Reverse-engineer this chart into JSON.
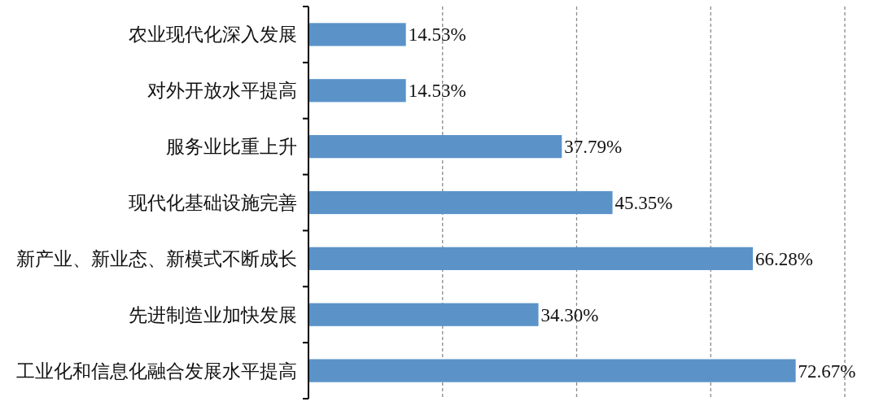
{
  "chart_data": {
    "type": "bar",
    "orientation": "horizontal",
    "categories": [
      "农业现代化深入发展",
      "对外开放水平提高",
      "服务业比重上升",
      "现代化基础设施完善",
      "新产业、新业态、新模式不断成长",
      "先进制造业加快发展",
      "工业化和信息化融合发展水平提高"
    ],
    "values": [
      14.53,
      14.53,
      37.79,
      45.35,
      66.28,
      34.3,
      72.67
    ],
    "value_labels": [
      "14.53%",
      "14.53%",
      "37.79%",
      "45.35%",
      "66.28%",
      "34.30%",
      "72.67%"
    ],
    "color": "#5b93c9",
    "xlim": [
      0,
      80
    ],
    "xticks": [
      {
        "value": 20,
        "label": null
      },
      {
        "value": 40,
        "label": null
      },
      {
        "value": 60,
        "label": null
      },
      {
        "value": 80,
        "label": null
      }
    ],
    "grid": "x",
    "tick_labels": "y"
  }
}
